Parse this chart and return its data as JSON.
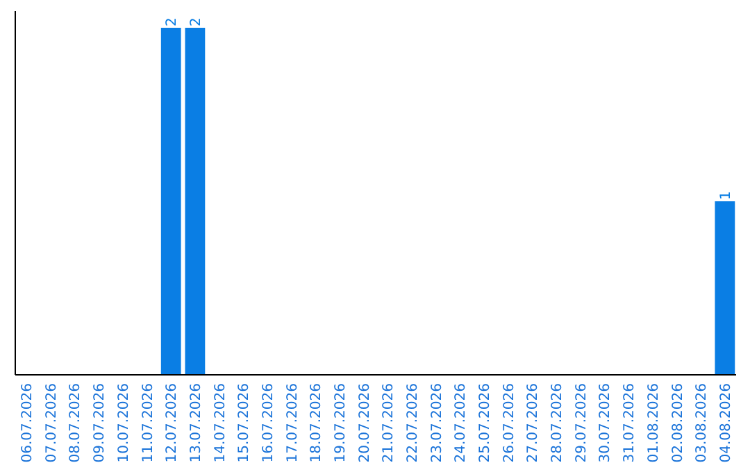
{
  "chart_data": {
    "type": "bar",
    "categories": [
      "06.07.2026",
      "07.07.2026",
      "08.07.2026",
      "09.07.2026",
      "10.07.2026",
      "11.07.2026",
      "12.07.2026",
      "13.07.2026",
      "14.07.2026",
      "15.07.2026",
      "16.07.2026",
      "17.07.2026",
      "18.07.2026",
      "19.07.2026",
      "20.07.2026",
      "21.07.2026",
      "22.07.2026",
      "23.07.2026",
      "24.07.2026",
      "25.07.2026",
      "26.07.2026",
      "27.07.2026",
      "28.07.2026",
      "29.07.2026",
      "30.07.2026",
      "31.07.2026",
      "01.08.2026",
      "02.08.2026",
      "03.08.2026",
      "04.08.2026"
    ],
    "values": [
      0,
      0,
      0,
      0,
      0,
      0,
      2,
      2,
      0,
      0,
      0,
      0,
      0,
      0,
      0,
      0,
      0,
      0,
      0,
      0,
      0,
      0,
      0,
      0,
      0,
      0,
      0,
      0,
      0,
      1
    ],
    "value_labels": [
      null,
      null,
      null,
      null,
      null,
      null,
      "2",
      "2",
      null,
      null,
      null,
      null,
      null,
      null,
      null,
      null,
      null,
      null,
      null,
      null,
      null,
      null,
      null,
      null,
      null,
      null,
      null,
      null,
      null,
      "1"
    ],
    "color": "#0a7ee4"
  }
}
